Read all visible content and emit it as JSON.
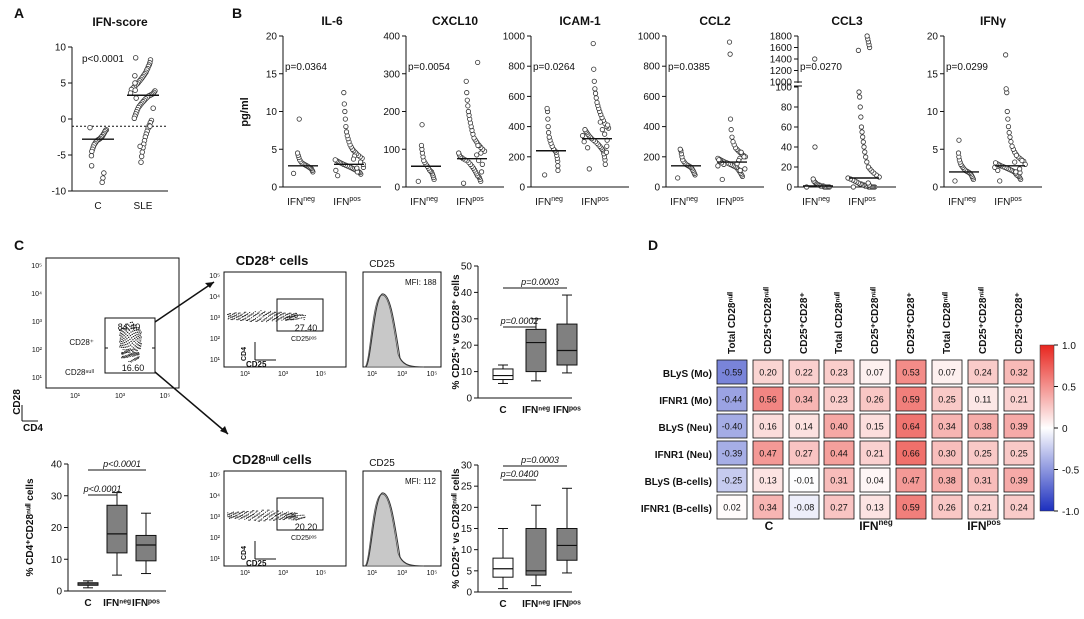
{
  "panel_labels": {
    "A": "A",
    "B": "B",
    "C": "C",
    "D": "D"
  },
  "chart_data": [
    {
      "id": "A",
      "type": "scatter",
      "title": "IFN-score",
      "ylim": [
        -10,
        10
      ],
      "yticks": [
        "10",
        "5",
        "0",
        "-5",
        "-10"
      ],
      "categories": [
        "C",
        "SLE"
      ],
      "pvalue": "p<0.0001",
      "threshold": -1,
      "medians": [
        -2.8,
        3.3
      ],
      "points": {
        "C": [
          -1.2,
          -1.5,
          -1.6,
          -1.8,
          -2.0,
          -2.2,
          -2.4,
          -2.5,
          -2.7,
          -2.8,
          -2.9,
          -3.0,
          -3.2,
          -3.4,
          -3.6,
          -3.9,
          -4.2,
          -4.5,
          -5.1,
          -6.5,
          -7.5,
          -8.2,
          -8.8
        ],
        "SLE": [
          8.5,
          8.2,
          7.8,
          7.5,
          7.3,
          7.0,
          6.8,
          6.5,
          6.3,
          6.1,
          5.9,
          5.7,
          5.5,
          5.3,
          5.1,
          4.9,
          4.7,
          4.5,
          4.3,
          4.1,
          3.9,
          3.7,
          3.5,
          3.4,
          3.3,
          3.2,
          3.0,
          2.8,
          2.6,
          2.4,
          2.2,
          2.0,
          1.8,
          1.6,
          1.3,
          1.0,
          0.7,
          0.4,
          0.1,
          -0.2,
          -0.5,
          -0.9,
          -1.3,
          -1.7,
          -2.1,
          -2.5,
          -3.0,
          -3.5,
          -4.0,
          -4.6,
          -5.2,
          -6.0,
          -3.8,
          2.9,
          4.0,
          5.0,
          6.0,
          3.6,
          1.5,
          -1.0
        ]
      }
    },
    {
      "id": "B",
      "type": "scatter",
      "ylabel": "pg/ml",
      "categories": [
        "IFN",
        "IFN"
      ],
      "cat_sup": [
        "neg",
        "pos"
      ],
      "subplots": [
        {
          "title": "IL-6",
          "ylim": [
            0,
            20
          ],
          "yticks": [
            "0",
            "5",
            "10",
            "15",
            "20"
          ],
          "pvalue": "p=0.0364",
          "medians": [
            2.8,
            3.0
          ],
          "neg": [
            1.8,
            2.0,
            2.2,
            2.4,
            2.5,
            2.6,
            2.7,
            2.8,
            2.9,
            3.0,
            3.1,
            3.2,
            3.4,
            3.6,
            3.9,
            4.2,
            4.5,
            9.0
          ],
          "pos": [
            1.5,
            1.7,
            1.9,
            2.0,
            2.1,
            2.2,
            2.3,
            2.4,
            2.5,
            2.6,
            2.7,
            2.8,
            2.9,
            3.0,
            3.1,
            3.2,
            3.3,
            3.4,
            3.5,
            3.6,
            3.8,
            4.0,
            4.2,
            4.4,
            4.6,
            4.8,
            5.0,
            5.3,
            5.6,
            6.0,
            6.4,
            6.8,
            7.3,
            8.0,
            9.0,
            10.0,
            11.0,
            12.5,
            2.2,
            2.6,
            3.0,
            3.3,
            2.0,
            2.5,
            4.1,
            3.7
          ]
        },
        {
          "title": "CXCL10",
          "ylim": [
            0,
            400
          ],
          "yticks": [
            "0",
            "100",
            "200",
            "300",
            "400"
          ],
          "pvalue": "p=0.0054",
          "medians": [
            55,
            75
          ],
          "neg": [
            15,
            20,
            25,
            30,
            35,
            40,
            42,
            45,
            50,
            55,
            60,
            65,
            70,
            80,
            90,
            100,
            110,
            165
          ],
          "pos": [
            10,
            15,
            20,
            25,
            28,
            30,
            35,
            40,
            45,
            50,
            55,
            60,
            65,
            70,
            72,
            75,
            78,
            80,
            85,
            90,
            95,
            100,
            105,
            110,
            115,
            120,
            125,
            130,
            140,
            150,
            160,
            170,
            180,
            190,
            200,
            215,
            230,
            250,
            280,
            330,
            40,
            60,
            90,
            110,
            70,
            85
          ]
        },
        {
          "title": "ICAM-1",
          "ylim": [
            0,
            1000
          ],
          "yticks": [
            "0",
            "200",
            "400",
            "600",
            "800",
            "1000"
          ],
          "pvalue": "p=0.0264",
          "medians": [
            240,
            320
          ],
          "neg": [
            80,
            110,
            140,
            170,
            190,
            210,
            230,
            240,
            250,
            270,
            290,
            310,
            330,
            360,
            400,
            450,
            500,
            520
          ],
          "pos": [
            120,
            150,
            180,
            200,
            220,
            240,
            250,
            260,
            270,
            280,
            290,
            300,
            310,
            320,
            330,
            340,
            350,
            360,
            370,
            380,
            390,
            400,
            420,
            440,
            460,
            480,
            500,
            520,
            540,
            560,
            590,
            620,
            650,
            700,
            780,
            950,
            260,
            300,
            340,
            410,
            230,
            270,
            310,
            350,
            380,
            430
          ]
        },
        {
          "title": "CCL2",
          "ylim": [
            0,
            1000
          ],
          "yticks": [
            "0",
            "200",
            "400",
            "600",
            "800",
            "1000"
          ],
          "pvalue": "p=0.0385",
          "medians": [
            140,
            165
          ],
          "neg": [
            60,
            80,
            90,
            100,
            110,
            120,
            130,
            135,
            140,
            145,
            150,
            160,
            170,
            180,
            200,
            220,
            240,
            250
          ],
          "pos": [
            50,
            70,
            80,
            90,
            100,
            110,
            120,
            130,
            135,
            140,
            145,
            150,
            155,
            160,
            165,
            170,
            175,
            180,
            185,
            190,
            200,
            210,
            220,
            230,
            240,
            250,
            260,
            280,
            300,
            330,
            380,
            450,
            880,
            960,
            150,
            160,
            170,
            180,
            140,
            120,
            200,
            230,
            110,
            190,
            175,
            155
          ]
        },
        {
          "title": "CCL3",
          "yticks": [
            "0",
            "20",
            "40",
            "60",
            "80",
            "100",
            "1000",
            "1200",
            "1400",
            "1600",
            "1800"
          ],
          "pvalue": "p=0.0270",
          "medians": [
            1,
            9
          ],
          "neg": [
            0,
            0,
            0,
            0,
            0,
            0,
            1,
            1,
            1,
            2,
            2,
            3,
            4,
            5,
            6,
            8,
            40,
            1400
          ],
          "pos": [
            0,
            0,
            0,
            0,
            0,
            0,
            0,
            1,
            1,
            1,
            2,
            2,
            3,
            3,
            4,
            5,
            6,
            7,
            8,
            9,
            10,
            12,
            14,
            16,
            18,
            20,
            25,
            30,
            35,
            40,
            45,
            50,
            55,
            60,
            70,
            80,
            90,
            95,
            1550,
            1600,
            1650,
            1700,
            1750,
            1800,
            2,
            4
          ]
        },
        {
          "title": "IFNγ",
          "ylim": [
            0,
            20
          ],
          "yticks": [
            "0",
            "5",
            "10",
            "15",
            "20"
          ],
          "pvalue": "p=0.0299",
          "medians": [
            2.0,
            2.8
          ],
          "neg": [
            0.8,
            1.0,
            1.2,
            1.4,
            1.6,
            1.8,
            1.9,
            2.0,
            2.1,
            2.2,
            2.4,
            2.6,
            2.8,
            3.0,
            3.3,
            3.6,
            4.0,
            4.5,
            6.2
          ],
          "pos": [
            0.8,
            1.0,
            1.2,
            1.4,
            1.5,
            1.6,
            1.8,
            2.0,
            2.1,
            2.2,
            2.3,
            2.4,
            2.5,
            2.6,
            2.7,
            2.8,
            2.9,
            3.0,
            3.1,
            3.2,
            3.4,
            3.6,
            3.8,
            4.0,
            4.3,
            4.6,
            5.0,
            5.4,
            6.0,
            6.6,
            7.2,
            8.0,
            9.0,
            10.0,
            12.5,
            13.0,
            17.5,
            2.2,
            2.6,
            3.0,
            3.5,
            1.9,
            2.4,
            4.2,
            2.0,
            3.3
          ]
        }
      ]
    },
    {
      "id": "C-flow",
      "type": "flow",
      "ylabel": "CD28",
      "xlabel": "CD4",
      "gate_top": "84.40",
      "gate_top_label": "CD28⁺",
      "gate_bottom": "16.60",
      "gate_bottom_label": "CD28ⁿᵘˡˡ",
      "ticks": [
        "10¹",
        "10³",
        "10⁵"
      ],
      "yticks": [
        "10⁵",
        "10⁴",
        "10³",
        "10²",
        "10¹"
      ]
    },
    {
      "id": "C-box-cd28null",
      "type": "box",
      "ylabel": "% CD4⁺CD28ⁿᵘˡˡ cells",
      "ylim": [
        0,
        40
      ],
      "yticks": [
        "0",
        "10",
        "20",
        "30",
        "40"
      ],
      "categories": [
        "C",
        "IFNⁿᵉᵍ",
        "IFNᵖᵒˢ"
      ],
      "boxes": [
        {
          "min": 1,
          "q1": 1.8,
          "median": 2.2,
          "q3": 2.6,
          "max": 3.2,
          "fill": "#ffffff"
        },
        {
          "min": 5,
          "q1": 12,
          "median": 18,
          "q3": 27,
          "max": 31,
          "fill": "#808080"
        },
        {
          "min": 5.5,
          "q1": 9.5,
          "median": 14.5,
          "q3": 17.5,
          "max": 24.5,
          "fill": "#808080"
        }
      ],
      "brackets": [
        "p<0.0001",
        "p<0.0001"
      ]
    },
    {
      "id": "C-cd28pos",
      "type": "flow",
      "title": "CD28⁺ cells",
      "gate": "27.40",
      "gate_label": "CD25ᵖᵒˢ",
      "axis_y": "CD4",
      "axis_x": "CD25",
      "hist_title": "CD25",
      "mfi": "MFI: 188"
    },
    {
      "id": "C-cd28null",
      "type": "flow",
      "title": "CD28ⁿᵘˡˡ cells",
      "gate": "20.20",
      "gate_label": "CD25ᵖᵒˢ",
      "axis_y": "CD4",
      "axis_x": "CD25",
      "hist_title": "CD25",
      "mfi": "MFI: 112"
    },
    {
      "id": "C-box-cd28pos",
      "type": "box",
      "ylabel": "% CD25⁺ vs CD28⁺ cells",
      "ylim": [
        0,
        50
      ],
      "yticks": [
        "0",
        "10",
        "20",
        "30",
        "40",
        "50"
      ],
      "categories": [
        "C",
        "IFNⁿᵉᵍ",
        "IFNᵖᵒˢ"
      ],
      "boxes": [
        {
          "min": 5.5,
          "q1": 7,
          "median": 8.5,
          "q3": 11,
          "max": 12.5,
          "fill": "#ffffff"
        },
        {
          "min": 6.5,
          "q1": 10,
          "median": 21,
          "q3": 26,
          "max": 30,
          "fill": "#808080"
        },
        {
          "min": 9.5,
          "q1": 12.5,
          "median": 18,
          "q3": 28,
          "max": 39,
          "fill": "#808080"
        }
      ],
      "brackets": [
        "p=0.0002",
        "p=0.0003"
      ]
    },
    {
      "id": "C-box-cd28null2",
      "type": "box",
      "ylabel": "% CD25⁺ vs CD28ⁿᵘˡˡ cells",
      "ylim": [
        0,
        30
      ],
      "yticks": [
        "0",
        "5",
        "10",
        "15",
        "20",
        "25",
        "30"
      ],
      "categories": [
        "C",
        "IFNⁿᵉᵍ",
        "IFNᵖᵒˢ"
      ],
      "boxes": [
        {
          "min": 0.8,
          "q1": 3.5,
          "median": 5.5,
          "q3": 8,
          "max": 15,
          "fill": "#ffffff"
        },
        {
          "min": 1.5,
          "q1": 4,
          "median": 5,
          "q3": 15,
          "max": 20.5,
          "fill": "#808080"
        },
        {
          "min": 4.5,
          "q1": 7.5,
          "median": 11,
          "q3": 15,
          "max": 24.5,
          "fill": "#808080"
        }
      ],
      "brackets": [
        "p=0.0400",
        "p=0.0003"
      ]
    },
    {
      "id": "D",
      "type": "heatmap",
      "rows": [
        "BLyS (Mo)",
        "IFNR1 (Mo)",
        "BLyS (Neu)",
        "IFNR1 (Neu)",
        "BLyS (B-cells)",
        "IFNR1 (B-cells)"
      ],
      "columns": [
        "Total CD28ⁿᵘˡˡ",
        "CD25⁺CD28ⁿᵘˡˡ",
        "CD25⁺CD28⁺"
      ],
      "groups": [
        {
          "label": "C",
          "sup": "",
          "values": [
            [
              -0.59,
              0.2,
              0.22
            ],
            [
              -0.44,
              0.56,
              0.34
            ],
            [
              -0.4,
              0.16,
              0.14
            ],
            [
              -0.39,
              0.47,
              0.27
            ],
            [
              -0.25,
              0.13,
              -0.01
            ],
            [
              0.02,
              0.34,
              -0.08
            ]
          ],
          "texts": [
            [
              "-0.59",
              "0.20",
              "0.22"
            ],
            [
              "-0.44",
              "0.56",
              "0.34"
            ],
            [
              "-0.40",
              "0.16",
              "0.14"
            ],
            [
              "-0.39",
              "0.47",
              "0.27"
            ],
            [
              "-0.25",
              "0.13",
              "-0.01"
            ],
            [
              "0.02",
              "0.34",
              "-0.08"
            ]
          ]
        },
        {
          "label": "IFN",
          "sup": "neg",
          "values": [
            [
              0.23,
              0.07,
              0.53
            ],
            [
              0.23,
              0.26,
              0.59
            ],
            [
              0.4,
              0.15,
              0.64
            ],
            [
              0.44,
              0.21,
              0.66
            ],
            [
              0.31,
              0.04,
              0.47
            ],
            [
              0.27,
              0.13,
              0.59
            ]
          ],
          "texts": [
            [
              "0.23",
              "0.07",
              "0.53"
            ],
            [
              "0.23",
              "0.26",
              "0.59"
            ],
            [
              "0.40",
              "0.15",
              "0.64"
            ],
            [
              "0.44",
              "0.21",
              "0.66"
            ],
            [
              "0.31",
              "0.04",
              "0.47"
            ],
            [
              "0.27",
              "0.13",
              "0.59"
            ]
          ]
        },
        {
          "label": "IFN",
          "sup": "pos",
          "values": [
            [
              0.07,
              0.24,
              0.32
            ],
            [
              0.25,
              0.11,
              0.21
            ],
            [
              0.34,
              0.38,
              0.39
            ],
            [
              0.3,
              0.25,
              0.25
            ],
            [
              0.38,
              0.31,
              0.39
            ],
            [
              0.26,
              0.21,
              0.24
            ]
          ],
          "texts": [
            [
              "0.07",
              "0.24",
              "0.32"
            ],
            [
              "0.25",
              "0.11",
              "0.21"
            ],
            [
              "0.34",
              "0.38",
              "0.39"
            ],
            [
              "0.30",
              "0.25",
              "0.25"
            ],
            [
              "0.38",
              "0.31",
              "0.39"
            ],
            [
              "0.26",
              "0.21",
              "0.24"
            ]
          ]
        }
      ],
      "colorbar": {
        "ticks": [
          "1.0",
          "0.5",
          "0",
          "-0.5",
          "-1.0"
        ],
        "max_color": "#e8261f",
        "min_color": "#1c2fbf"
      }
    }
  ]
}
